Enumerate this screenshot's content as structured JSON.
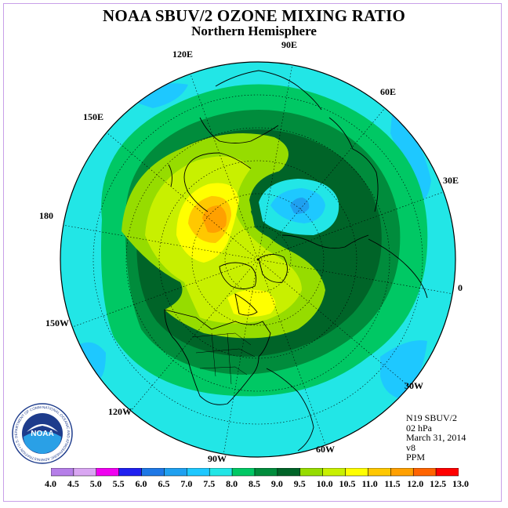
{
  "title": "NOAA SBUV/2 OZONE MIXING RATIO",
  "subtitle": "Northern Hemisphere",
  "longitude_labels": [
    "90E",
    "60E",
    "30E",
    "0",
    "30W",
    "60W",
    "90W",
    "120W",
    "150W",
    "180",
    "150E",
    "120E"
  ],
  "info": {
    "instrument": "N19 SBUV/2",
    "level": "02 hPa",
    "date": "March 31, 2014",
    "version": "v8",
    "units": "PPM"
  },
  "colorbar": {
    "ticks": [
      "4.0",
      "4.5",
      "5.0",
      "5.5",
      "6.0",
      "6.5",
      "7.0",
      "7.5",
      "8.0",
      "8.5",
      "9.0",
      "9.5",
      "10.0",
      "10.5",
      "11.0",
      "11.5",
      "12.0",
      "12.5",
      "13.0"
    ],
    "colors": [
      "#b57ee8",
      "#d9a6f2",
      "#f000f0",
      "#2020f0",
      "#1e78e6",
      "#1fa0f0",
      "#1ec8ff",
      "#22e6e6",
      "#00c864",
      "#008c3c",
      "#006428",
      "#96dc00",
      "#c8f000",
      "#ffff00",
      "#ffc800",
      "#ffa000",
      "#ff6400",
      "#ff0000",
      "#8c5a3c"
    ]
  },
  "logo_text": "NOAA",
  "logo_ring_text": "NATIONAL OCEANIC AND ATMOSPHERIC ADMINISTRATION • U.S. DEPARTMENT OF COMMERCE"
}
